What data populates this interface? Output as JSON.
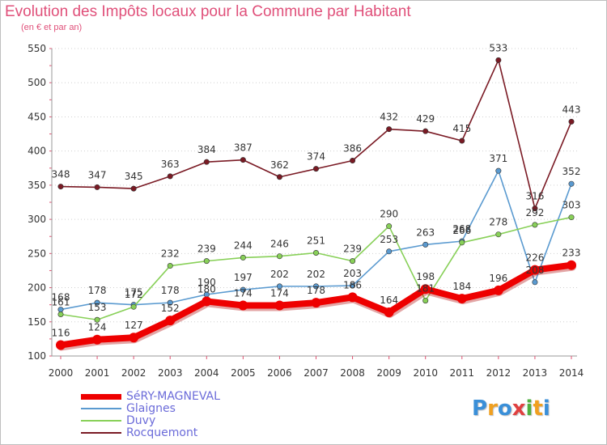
{
  "title": "Evolution des Impôts locaux pour la Commune par Habitant",
  "subtitle": "(en € et par an)",
  "logo": {
    "letters": [
      "P",
      "r",
      "o",
      "x",
      "i",
      "t",
      "i"
    ],
    "colors": [
      "#3a8fd8",
      "#f0a020",
      "#3a8fd8",
      "#e04040",
      "#50b040",
      "#f0a020",
      "#3a8fd8"
    ]
  },
  "chart_data": {
    "type": "line",
    "x": [
      "2000",
      "2001",
      "2002",
      "2003",
      "2004",
      "2005",
      "2006",
      "2007",
      "2008",
      "2009",
      "2010",
      "2011",
      "2012",
      "2013",
      "2014"
    ],
    "ylim": [
      100,
      550
    ],
    "yticks": [
      100,
      150,
      200,
      250,
      300,
      350,
      400,
      450,
      500,
      550
    ],
    "grid": "horizontal-dotted",
    "legend_position": "bottom-left",
    "series": [
      {
        "name": "Rocquemont",
        "color": "#7a1a24",
        "values": [
          348,
          347,
          345,
          363,
          384,
          387,
          362,
          374,
          386,
          432,
          429,
          415,
          533,
          316,
          443
        ]
      },
      {
        "name": "Glaignes",
        "color": "#5a9ad0",
        "values": [
          168,
          178,
          175,
          178,
          190,
          197,
          202,
          202,
          203,
          253,
          263,
          268,
          371,
          208,
          352
        ]
      },
      {
        "name": "Duvy",
        "color": "#88d058",
        "values": [
          161,
          153,
          172,
          232,
          239,
          244,
          246,
          251,
          239,
          290,
          181,
          266,
          278,
          292,
          303
        ]
      },
      {
        "name": "SéRY-MAGNEVAL",
        "color": "#ee0000",
        "values": [
          116,
          124,
          127,
          152,
          180,
          174,
          174,
          178,
          186,
          164,
          198,
          184,
          196,
          226,
          233
        ]
      }
    ]
  },
  "legend": [
    {
      "label": "SéRY-MAGNEVAL",
      "color": "#ee0000",
      "weight": 7
    },
    {
      "label": "Glaignes",
      "color": "#5a9ad0",
      "weight": 2
    },
    {
      "label": "Duvy",
      "color": "#88d058",
      "weight": 2
    },
    {
      "label": "Rocquemont",
      "color": "#7a1a24",
      "weight": 2
    }
  ]
}
